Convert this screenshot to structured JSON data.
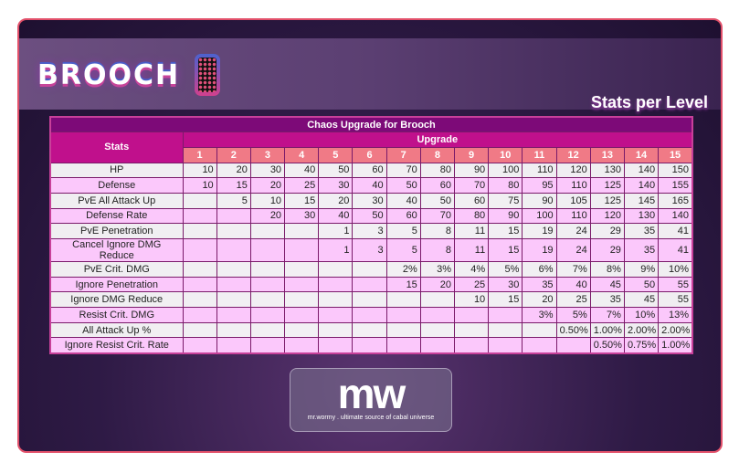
{
  "header": {
    "title": "BROOCH",
    "subtitle": "Stats per Level",
    "icon": "mobile-phone-icon"
  },
  "table": {
    "caption": "Chaos Upgrade for Brooch",
    "stats_header": "Stats",
    "upgrade_header": "Upgrade",
    "levels": [
      "1",
      "2",
      "3",
      "4",
      "5",
      "6",
      "7",
      "8",
      "9",
      "10",
      "11",
      "12",
      "13",
      "14",
      "15"
    ],
    "rows": [
      {
        "stat": "HP",
        "values": [
          "10",
          "20",
          "30",
          "40",
          "50",
          "60",
          "70",
          "80",
          "90",
          "100",
          "110",
          "120",
          "130",
          "140",
          "150"
        ]
      },
      {
        "stat": "Defense",
        "values": [
          "10",
          "15",
          "20",
          "25",
          "30",
          "40",
          "50",
          "60",
          "70",
          "80",
          "95",
          "110",
          "125",
          "140",
          "155"
        ]
      },
      {
        "stat": "PvE All Attack Up",
        "values": [
          "",
          "5",
          "10",
          "15",
          "20",
          "30",
          "40",
          "50",
          "60",
          "75",
          "90",
          "105",
          "125",
          "145",
          "165"
        ]
      },
      {
        "stat": "Defense Rate",
        "values": [
          "",
          "",
          "20",
          "30",
          "40",
          "50",
          "60",
          "70",
          "80",
          "90",
          "100",
          "110",
          "120",
          "130",
          "140"
        ]
      },
      {
        "stat": "PvE Penetration",
        "values": [
          "",
          "",
          "",
          "",
          "1",
          "3",
          "5",
          "8",
          "11",
          "15",
          "19",
          "24",
          "29",
          "35",
          "41"
        ]
      },
      {
        "stat": "Cancel Ignore DMG Reduce",
        "values": [
          "",
          "",
          "",
          "",
          "1",
          "3",
          "5",
          "8",
          "11",
          "15",
          "19",
          "24",
          "29",
          "35",
          "41"
        ]
      },
      {
        "stat": "PvE Crit. DMG",
        "values": [
          "",
          "",
          "",
          "",
          "",
          "",
          "2%",
          "3%",
          "4%",
          "5%",
          "6%",
          "7%",
          "8%",
          "9%",
          "10%"
        ]
      },
      {
        "stat": "Ignore Penetration",
        "values": [
          "",
          "",
          "",
          "",
          "",
          "",
          "15",
          "20",
          "25",
          "30",
          "35",
          "40",
          "45",
          "50",
          "55"
        ]
      },
      {
        "stat": "Ignore DMG Reduce",
        "values": [
          "",
          "",
          "",
          "",
          "",
          "",
          "",
          "",
          "10",
          "15",
          "20",
          "25",
          "35",
          "45",
          "55"
        ]
      },
      {
        "stat": "Resist Crit. DMG",
        "values": [
          "",
          "",
          "",
          "",
          "",
          "",
          "",
          "",
          "",
          "",
          "3%",
          "5%",
          "7%",
          "10%",
          "13%"
        ]
      },
      {
        "stat": "All Attack Up %",
        "values": [
          "",
          "",
          "",
          "",
          "",
          "",
          "",
          "",
          "",
          "",
          "",
          "0.50%",
          "1.00%",
          "2.00%",
          "2.00%"
        ]
      },
      {
        "stat": "Ignore Resist Crit. Rate",
        "values": [
          "",
          "",
          "",
          "",
          "",
          "",
          "",
          "",
          "",
          "",
          "",
          "",
          "0.50%",
          "0.75%",
          "1.00%"
        ]
      }
    ]
  },
  "logo": {
    "mark": "mw",
    "tagline": "mr.wormy . ultimate source of cabal universe"
  }
}
